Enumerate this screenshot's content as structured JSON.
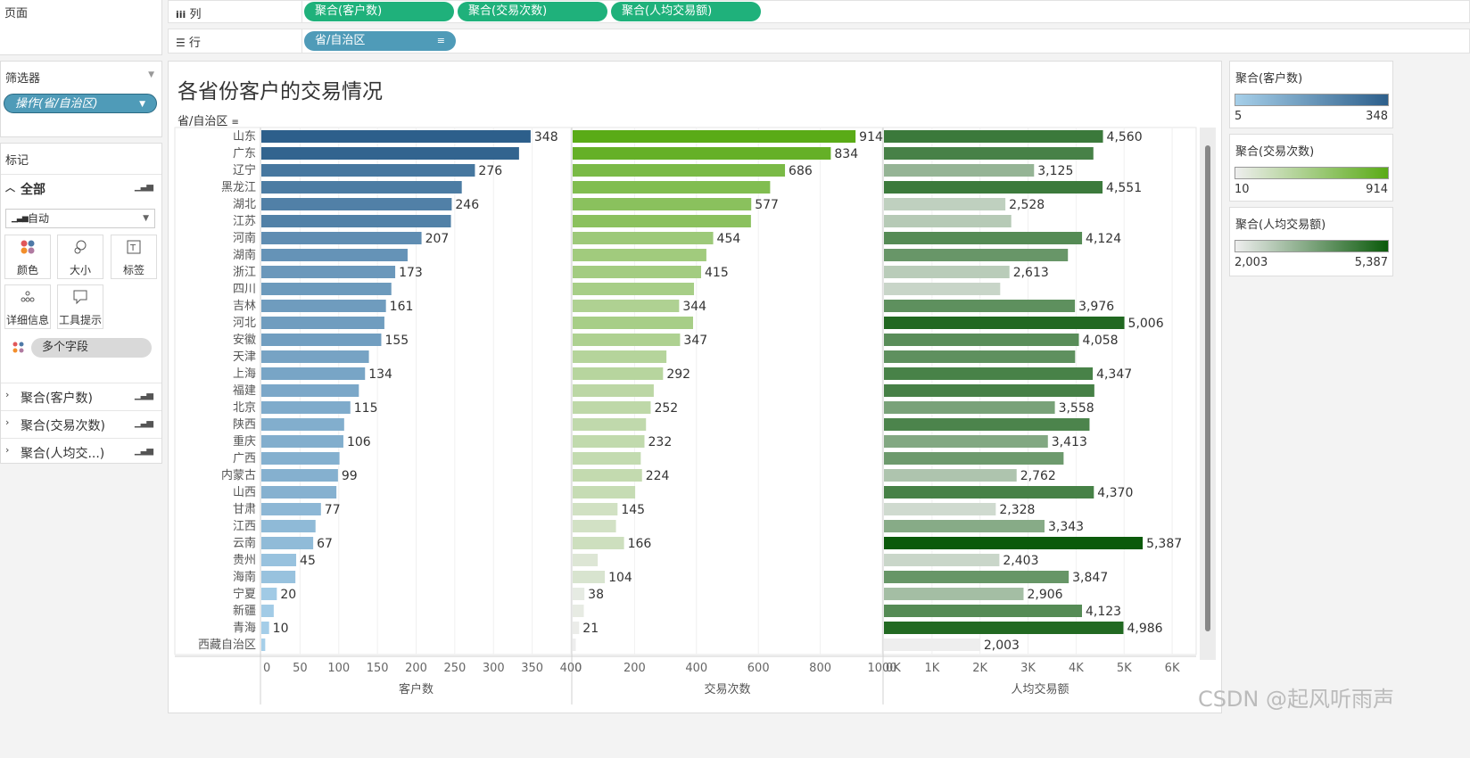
{
  "shelves": {
    "pages_label": "页面",
    "columns_label": "列",
    "rows_label": "行",
    "column_pills": [
      "聚合(客户数)",
      "聚合(交易次数)",
      "聚合(人均交易额)"
    ],
    "row_pill": "省/自治区"
  },
  "filters": {
    "title": "筛选器",
    "pill": "操作(省/自治区)"
  },
  "marks": {
    "title": "标记",
    "all_label": "全部",
    "mark_type": "自动",
    "buttons": [
      "颜色",
      "大小",
      "标签",
      "详细信息",
      "工具提示"
    ],
    "multi_field": "多个字段",
    "measures": [
      "聚合(客户数)",
      "聚合(交易次数)",
      "聚合(人均交...)"
    ]
  },
  "view": {
    "title": "各省份客户的交易情况",
    "row_header": "省/自治区"
  },
  "legends": [
    {
      "title": "聚合(客户数)",
      "min": "5",
      "max": "348",
      "from": "#a6cfe9",
      "to": "#2d5f8b"
    },
    {
      "title": "聚合(交易次数)",
      "min": "10",
      "max": "914",
      "from": "#eeeeee",
      "to": "#5aab17"
    },
    {
      "title": "聚合(人均交易额)",
      "min": "2,003",
      "max": "5,387",
      "from": "#eeeeee",
      "to": "#0b5a0b"
    }
  ],
  "watermark": "CSDN @起风听雨声",
  "chart_data": {
    "type": "bar",
    "categories": [
      "山东",
      "广东",
      "辽宁",
      "黑龙江",
      "湖北",
      "江苏",
      "河南",
      "湖南",
      "浙江",
      "四川",
      "吉林",
      "河北",
      "安徽",
      "天津",
      "上海",
      "福建",
      "北京",
      "陕西",
      "重庆",
      "广西",
      "内蒙古",
      "山西",
      "甘肃",
      "江西",
      "云南",
      "贵州",
      "海南",
      "宁夏",
      "新疆",
      "青海",
      "西藏自治区"
    ],
    "series": [
      {
        "name": "客户数",
        "xlabel": "客户数",
        "xlim": [
          0,
          400
        ],
        "ticks": [
          "0",
          "50",
          "100",
          "150",
          "200",
          "250",
          "300",
          "350",
          "400"
        ],
        "tick_values": [
          0,
          50,
          100,
          150,
          200,
          250,
          300,
          350,
          400
        ],
        "values": [
          348,
          333,
          276,
          259,
          246,
          245,
          207,
          189,
          173,
          168,
          161,
          159,
          155,
          139,
          134,
          126,
          115,
          107,
          106,
          101,
          99,
          97,
          77,
          70,
          67,
          45,
          44,
          20,
          16,
          10,
          5
        ],
        "labels": [
          "348",
          "",
          "276",
          "",
          "246",
          "",
          "207",
          "",
          "173",
          "",
          "161",
          "",
          "155",
          "",
          "134",
          "",
          "115",
          "",
          "106",
          "",
          "99",
          "",
          "77",
          "",
          "67",
          "45",
          "",
          "20",
          "",
          "10",
          ""
        ]
      },
      {
        "name": "交易次数",
        "xlabel": "交易次数",
        "xlim": [
          0,
          1000
        ],
        "ticks": [
          "0",
          "200",
          "400",
          "600",
          "800",
          "1000"
        ],
        "tick_values": [
          0,
          200,
          400,
          600,
          800,
          1000
        ],
        "values": [
          914,
          834,
          686,
          638,
          577,
          576,
          454,
          432,
          415,
          392,
          344,
          389,
          347,
          303,
          292,
          262,
          252,
          237,
          232,
          220,
          224,
          202,
          145,
          140,
          166,
          81,
          104,
          38,
          36,
          21,
          10
        ],
        "labels": [
          "914",
          "834",
          "686",
          "",
          "577",
          "",
          "454",
          "",
          "415",
          "",
          "344",
          "",
          "347",
          "",
          "292",
          "",
          "252",
          "",
          "232",
          "",
          "224",
          "",
          "145",
          "",
          "166",
          "",
          "104",
          "38",
          "",
          "21",
          ""
        ]
      },
      {
        "name": "人均交易额",
        "xlabel": "人均交易额",
        "xlim": [
          0,
          6500
        ],
        "ticks": [
          "0K",
          "1K",
          "2K",
          "3K",
          "4K",
          "5K",
          "6K"
        ],
        "tick_values": [
          0,
          1000,
          2000,
          3000,
          4000,
          5000,
          6000
        ],
        "values": [
          4560,
          4360,
          3125,
          4551,
          2528,
          2650,
          4124,
          3830,
          2613,
          2420,
          3976,
          5006,
          4058,
          3980,
          4347,
          4380,
          3558,
          4280,
          3413,
          3740,
          2762,
          4370,
          2328,
          3343,
          5387,
          2403,
          3847,
          2906,
          4123,
          4986,
          2003
        ],
        "labels": [
          "4,560",
          "",
          "3,125",
          "4,551",
          "2,528",
          "",
          "4,124",
          "",
          "2,613",
          "",
          "3,976",
          "5,006",
          "4,058",
          "",
          "4,347",
          "",
          "3,558",
          "",
          "3,413",
          "",
          "2,762",
          "4,370",
          "2,328",
          "3,343",
          "5,387",
          "2,403",
          "3,847",
          "2,906",
          "4,123",
          "4,986",
          "2,003"
        ]
      }
    ]
  }
}
